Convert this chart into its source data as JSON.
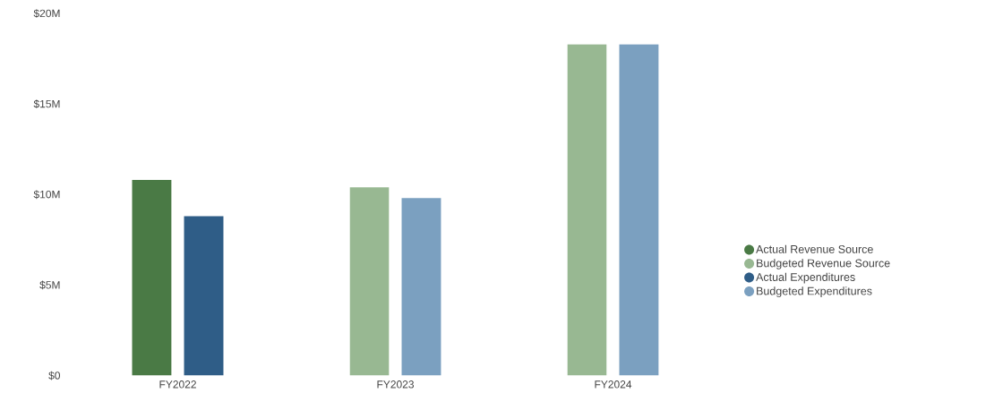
{
  "chart_data": {
    "type": "bar",
    "categories": [
      "FY2022",
      "FY2023",
      "FY2024"
    ],
    "series": [
      {
        "name": "Actual Revenue Source",
        "color": "#4a7a45",
        "values": [
          10.8,
          null,
          null
        ]
      },
      {
        "name": "Budgeted Revenue Source",
        "color": "#98b892",
        "values": [
          null,
          10.4,
          18.3
        ]
      },
      {
        "name": "Actual Expenditures",
        "color": "#2f5d87",
        "values": [
          8.8,
          null,
          null
        ]
      },
      {
        "name": "Budgeted Expenditures",
        "color": "#7ba0c0",
        "values": [
          null,
          9.8,
          18.3
        ]
      }
    ],
    "ylim": [
      0,
      20
    ],
    "yticks": [
      {
        "value": 0,
        "label": "$0"
      },
      {
        "value": 5,
        "label": "$5M"
      },
      {
        "value": 10,
        "label": "$10M"
      },
      {
        "value": 15,
        "label": "$15M"
      },
      {
        "value": 20,
        "label": "$20M"
      }
    ],
    "legend": "right"
  }
}
